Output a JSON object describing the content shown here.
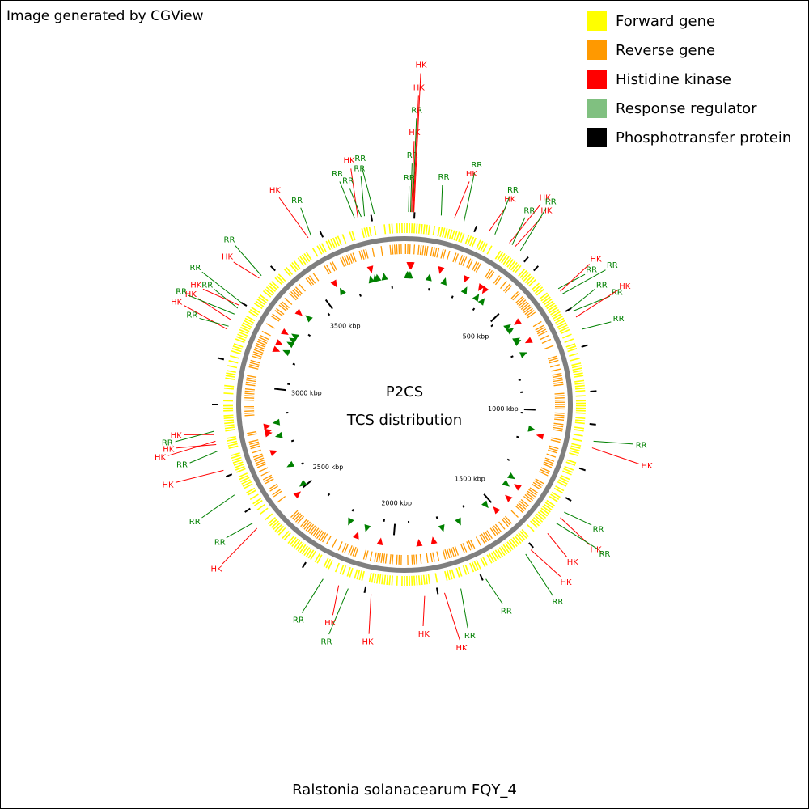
{
  "credit": "Image generated by CGView",
  "caption": "Ralstonia solanacearum FQY_4",
  "center": {
    "line1": "P2CS",
    "line2": "TCS distribution"
  },
  "legend": [
    {
      "label": "Forward gene",
      "color": "#ffff00"
    },
    {
      "label": "Reverse gene",
      "color": "#ff9900"
    },
    {
      "label": "Histidine kinase",
      "color": "#ff0000"
    },
    {
      "label": "Response regulator",
      "color": "#80c080"
    },
    {
      "label": "Phosphotransfer protein",
      "color": "#000000"
    }
  ],
  "map": {
    "genome_length_kbp": 3900,
    "ticks": [
      {
        "label": "500 kbp",
        "kbp": 500
      },
      {
        "label": "1000 kbp",
        "kbp": 1000
      },
      {
        "label": "1500 kbp",
        "kbp": 1500
      },
      {
        "label": "2000 kbp",
        "kbp": 2000
      },
      {
        "label": "2500 kbp",
        "kbp": 2500
      },
      {
        "label": "3000 kbp",
        "kbp": 3000
      },
      {
        "label": "3500 kbp",
        "kbp": 3500
      }
    ],
    "colors": {
      "hk": "#ff0000",
      "rr": "#008000",
      "backbone": "#7f7f7f",
      "forward": "#ffff00",
      "reverse": "#ff9900",
      "pt": "#000000"
    },
    "features": [
      {
        "type": "RR",
        "angle": 1.2
      },
      {
        "type": "RR",
        "angle": 1.8
      },
      {
        "type": "HK",
        "angle": 2.1
      },
      {
        "type": "RR",
        "angle": 2.4
      },
      {
        "type": "HK",
        "angle": 2.6
      },
      {
        "type": "HK",
        "angle": 2.8
      },
      {
        "type": "RR",
        "angle": 11
      },
      {
        "type": "HK",
        "angle": 15
      },
      {
        "type": "RR",
        "angle": 18
      },
      {
        "type": "HK",
        "angle": 26
      },
      {
        "type": "RR",
        "angle": 28
      },
      {
        "type": "HK",
        "angle": 33
      },
      {
        "type": "RR",
        "angle": 34
      },
      {
        "type": "HK",
        "angle": 35
      },
      {
        "type": "RR",
        "angle": 37
      },
      {
        "type": "RR",
        "angle": 53
      },
      {
        "type": "HK",
        "angle": 54
      },
      {
        "type": "RR",
        "angle": 55
      },
      {
        "type": "RR",
        "angle": 60
      },
      {
        "type": "RR",
        "angle": 61
      },
      {
        "type": "HK",
        "angle": 63
      },
      {
        "type": "RR",
        "angle": 67
      },
      {
        "type": "RR",
        "angle": 101
      },
      {
        "type": "HK",
        "angle": 103
      },
      {
        "type": "RR",
        "angle": 124
      },
      {
        "type": "HK",
        "angle": 126
      },
      {
        "type": "RR",
        "angle": 128
      },
      {
        "type": "HK",
        "angle": 132
      },
      {
        "type": "HK",
        "angle": 139
      },
      {
        "type": "RR",
        "angle": 141
      },
      {
        "type": "RR",
        "angle": 155
      },
      {
        "type": "RR",
        "angle": 163
      },
      {
        "type": "HK",
        "angle": 168
      },
      {
        "type": "HK",
        "angle": 174
      },
      {
        "type": "HK",
        "angle": 190
      },
      {
        "type": "RR",
        "angle": 197
      },
      {
        "type": "HK",
        "angle": 200
      },
      {
        "type": "RR",
        "angle": 205
      },
      {
        "type": "HK",
        "angle": 230
      },
      {
        "type": "RR",
        "angle": 232
      },
      {
        "type": "RR",
        "angle": 242
      },
      {
        "type": "HK",
        "angle": 250
      },
      {
        "type": "RR",
        "angle": 256
      },
      {
        "type": "HK",
        "angle": 258
      },
      {
        "type": "HK",
        "angle": 259
      },
      {
        "type": "HK",
        "angle": 261
      },
      {
        "type": "RR",
        "angle": 262
      },
      {
        "type": "HK",
        "angle": 293
      },
      {
        "type": "RR",
        "angle": 294
      },
      {
        "type": "HK",
        "angle": 296
      },
      {
        "type": "RR",
        "angle": 298
      },
      {
        "type": "RR",
        "angle": 300
      },
      {
        "type": "HK",
        "angle": 301
      },
      {
        "type": "RR",
        "angle": 302
      },
      {
        "type": "HK",
        "angle": 311
      },
      {
        "type": "RR",
        "angle": 312
      },
      {
        "type": "HK",
        "angle": 330
      },
      {
        "type": "RR",
        "angle": 331
      },
      {
        "type": "RR",
        "angle": 345
      },
      {
        "type": "HK",
        "angle": 346
      },
      {
        "type": "RR",
        "angle": 347
      },
      {
        "type": "RR",
        "angle": 348
      },
      {
        "type": "RR",
        "angle": 351
      }
    ]
  }
}
